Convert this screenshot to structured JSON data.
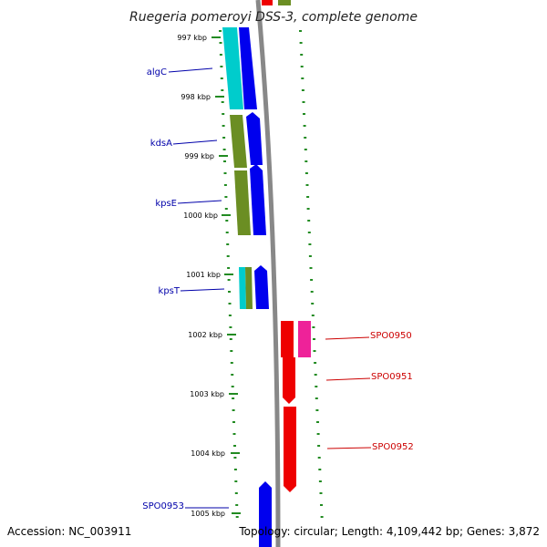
{
  "title": "Ruegeria pomeroyi DSS-3, complete genome",
  "footer": {
    "accession": "Accession: NC_003911",
    "summary": "Topology: circular; Length: 4,109,442 bp; Genes: 3,872"
  },
  "scale_labels": [
    "997 kbp",
    "998 kbp",
    "999 kbp",
    "1000 kbp",
    "1001 kbp",
    "1002 kbp",
    "1003 kbp",
    "1004 kbp",
    "1005 kbp"
  ],
  "labels_left": [
    {
      "id": "algC",
      "text": "algC",
      "color": "#0000aa"
    },
    {
      "id": "kdsA",
      "text": "kdsA",
      "color": "#0000aa"
    },
    {
      "id": "kpsE",
      "text": "kpsE",
      "color": "#0000aa"
    },
    {
      "id": "kpsT",
      "text": "kpsT",
      "color": "#0000aa"
    },
    {
      "id": "SPO0953",
      "text": "SPO0953",
      "color": "#0000aa"
    }
  ],
  "labels_right": [
    {
      "id": "SPO0950",
      "text": "SPO0950",
      "color": "#cc0000"
    },
    {
      "id": "SPO0951",
      "text": "SPO0951",
      "color": "#cc0000"
    },
    {
      "id": "SPO0952",
      "text": "SPO0952",
      "color": "#cc0000"
    }
  ],
  "colors": {
    "forward_cds": "#0000ee",
    "reverse_cds": "#ee0000",
    "cog_cyan": "#00cccc",
    "cog_olive": "#6b8e23",
    "cog_magenta": "#ee2299",
    "backbone": "#888888",
    "tick": "#228b22",
    "label_blue": "#0000aa",
    "label_red": "#cc0000"
  }
}
